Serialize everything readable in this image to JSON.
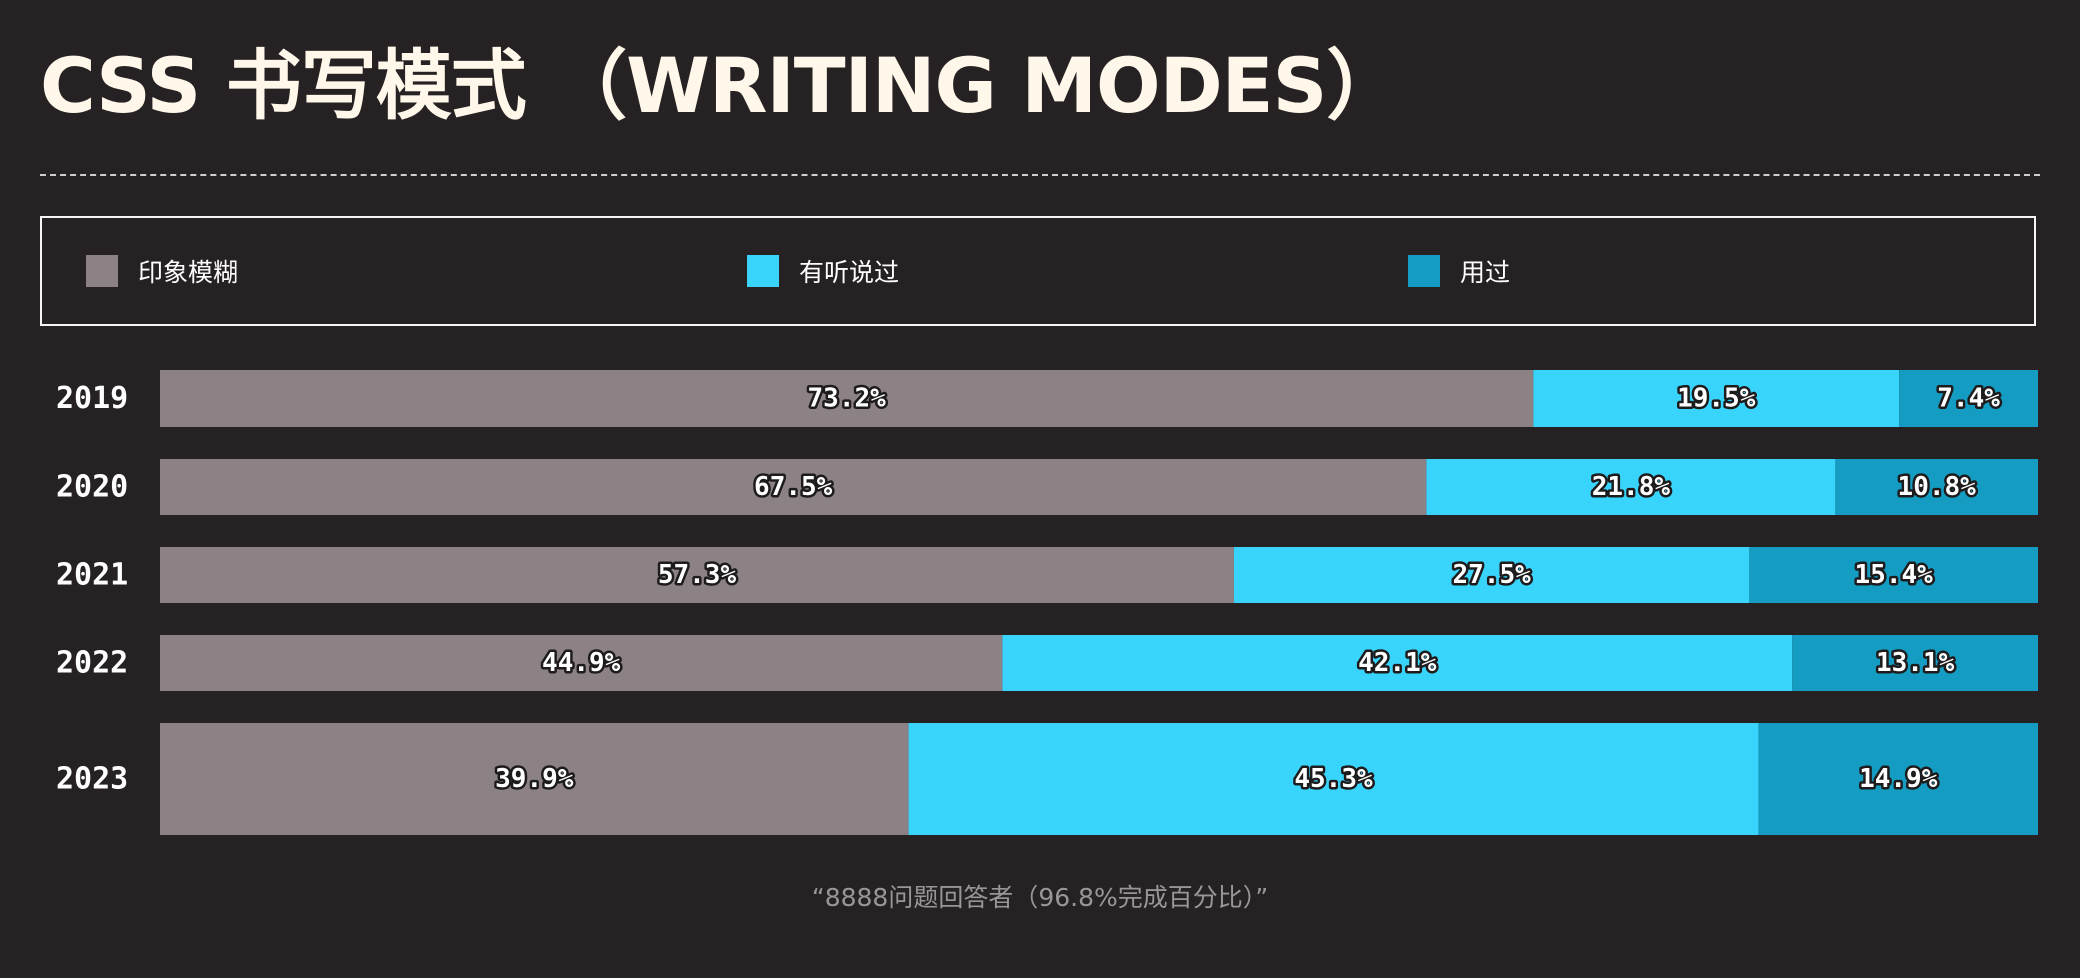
{
  "page": {
    "title": "CSS 书写模式 （WRITING MODES）",
    "footnote": "“8888问题回答者（96.8%完成百分比）”"
  },
  "chart_data": {
    "type": "bar",
    "orientation": "horizontal",
    "stacked": true,
    "title": "CSS 书写模式 （WRITING MODES）",
    "categories": [
      "2019",
      "2020",
      "2021",
      "2022",
      "2023"
    ],
    "series": [
      {
        "name": "印象模糊",
        "color": "#8c8185",
        "values": [
          73.2,
          67.5,
          57.3,
          44.9,
          39.9
        ]
      },
      {
        "name": "有听说过",
        "color": "#39d4fc",
        "values": [
          19.5,
          21.8,
          27.5,
          42.1,
          45.3
        ]
      },
      {
        "name": "用过",
        "color": "#149cc2",
        "values": [
          7.4,
          10.8,
          15.4,
          13.1,
          14.9
        ]
      }
    ],
    "value_suffix": "%",
    "legend_position": "top",
    "grid": false,
    "xlim": [
      0,
      100
    ]
  }
}
